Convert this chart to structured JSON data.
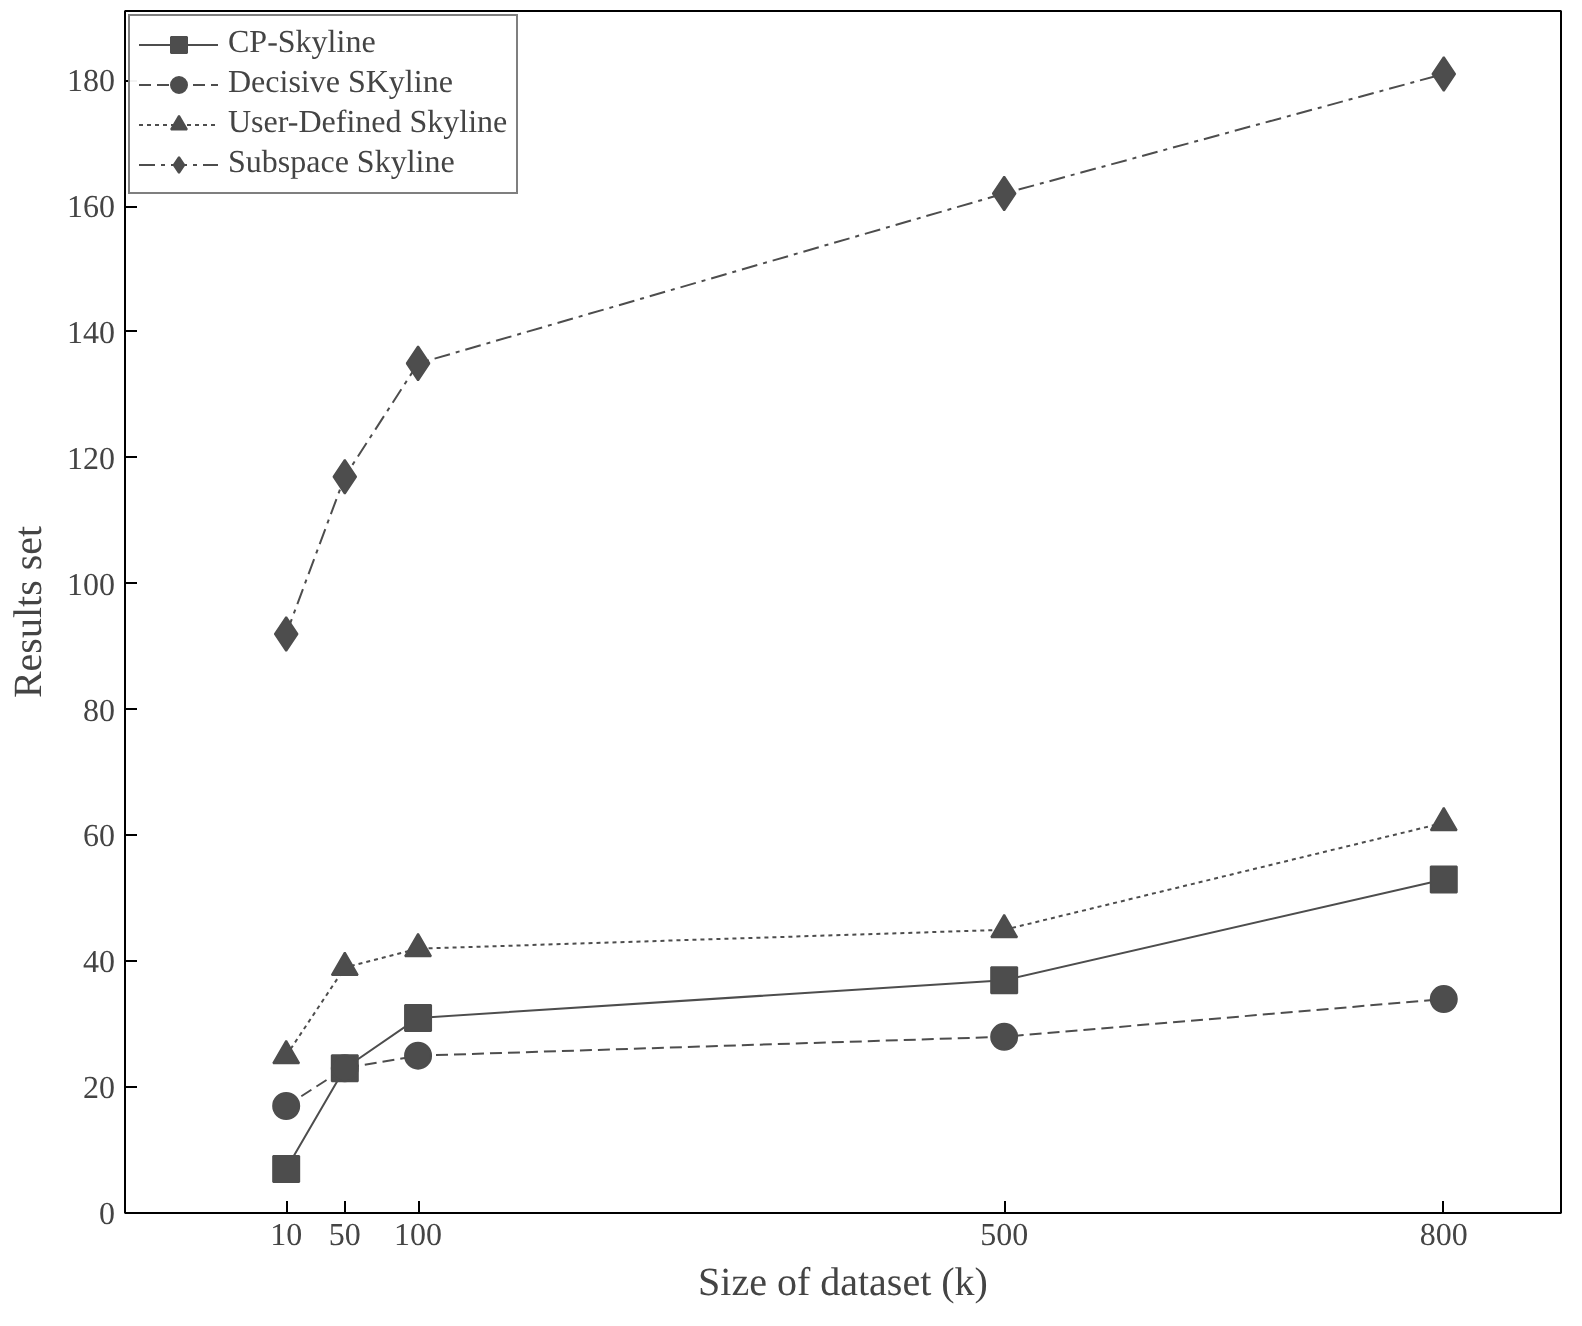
{
  "chart_data": {
    "type": "line",
    "xlabel": "Size of dataset (k)",
    "ylabel": "Results set",
    "x": [
      10,
      50,
      100,
      500,
      800
    ],
    "xlim": [
      -100,
      880
    ],
    "xticks": [
      10,
      50,
      100,
      500,
      800
    ],
    "ylim": [
      0,
      191
    ],
    "yticks": [
      0,
      20,
      40,
      60,
      80,
      100,
      120,
      140,
      160,
      180
    ],
    "grid": false,
    "legend": "top left",
    "series": [
      {
        "name": "CP-Skyline",
        "color": "#4d4d4d",
        "marker": "square",
        "line_style": "solid",
        "values": [
          7,
          23,
          31,
          37,
          53
        ]
      },
      {
        "name": "Decisive SKyline",
        "color": "#4d4d4d",
        "marker": "circle",
        "line_style": "dashed",
        "values": [
          17,
          23,
          25,
          28,
          34
        ]
      },
      {
        "name": "User-Defined Skyline",
        "color": "#4d4d4d",
        "marker": "triangle",
        "line_style": "dotted",
        "values": [
          25,
          39,
          42,
          45,
          62
        ]
      },
      {
        "name": "Subspace Skyline",
        "color": "#4d4d4d",
        "marker": "diamond",
        "line_style": "dashdot",
        "values": [
          92,
          117,
          135,
          162,
          181
        ]
      }
    ]
  }
}
